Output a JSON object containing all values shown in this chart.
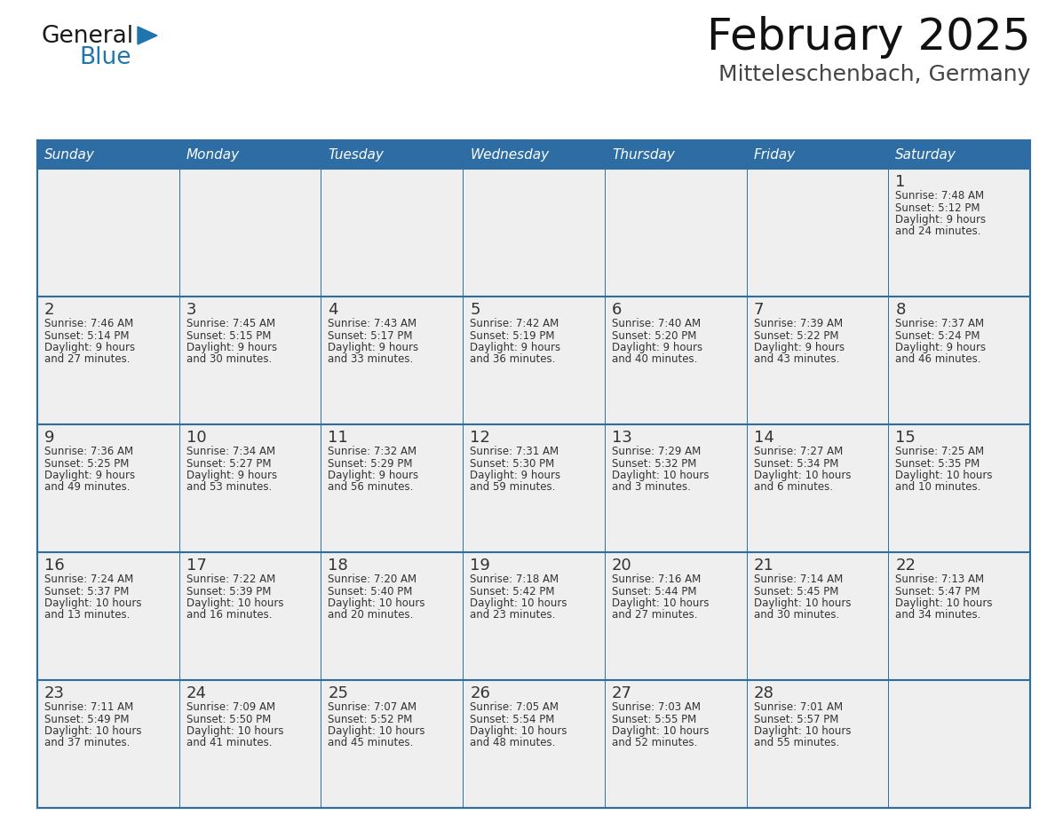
{
  "title": "February 2025",
  "subtitle": "Mitteleschenbach, Germany",
  "days_of_week": [
    "Sunday",
    "Monday",
    "Tuesday",
    "Wednesday",
    "Thursday",
    "Friday",
    "Saturday"
  ],
  "header_bg": "#2E6DA4",
  "header_text": "#FFFFFF",
  "cell_bg": "#EFEFEF",
  "border_color": "#2E6DA4",
  "row_line_color": "#2E6DA4",
  "day_number_color": "#333333",
  "text_color": "#333333",
  "calendar_data": [
    [
      null,
      null,
      null,
      null,
      null,
      null,
      {
        "day": 1,
        "sunrise": "7:48 AM",
        "sunset": "5:12 PM",
        "daylight": "9 hours",
        "daylight2": "and 24 minutes."
      }
    ],
    [
      {
        "day": 2,
        "sunrise": "7:46 AM",
        "sunset": "5:14 PM",
        "daylight": "9 hours",
        "daylight2": "and 27 minutes."
      },
      {
        "day": 3,
        "sunrise": "7:45 AM",
        "sunset": "5:15 PM",
        "daylight": "9 hours",
        "daylight2": "and 30 minutes."
      },
      {
        "day": 4,
        "sunrise": "7:43 AM",
        "sunset": "5:17 PM",
        "daylight": "9 hours",
        "daylight2": "and 33 minutes."
      },
      {
        "day": 5,
        "sunrise": "7:42 AM",
        "sunset": "5:19 PM",
        "daylight": "9 hours",
        "daylight2": "and 36 minutes."
      },
      {
        "day": 6,
        "sunrise": "7:40 AM",
        "sunset": "5:20 PM",
        "daylight": "9 hours",
        "daylight2": "and 40 minutes."
      },
      {
        "day": 7,
        "sunrise": "7:39 AM",
        "sunset": "5:22 PM",
        "daylight": "9 hours",
        "daylight2": "and 43 minutes."
      },
      {
        "day": 8,
        "sunrise": "7:37 AM",
        "sunset": "5:24 PM",
        "daylight": "9 hours",
        "daylight2": "and 46 minutes."
      }
    ],
    [
      {
        "day": 9,
        "sunrise": "7:36 AM",
        "sunset": "5:25 PM",
        "daylight": "9 hours",
        "daylight2": "and 49 minutes."
      },
      {
        "day": 10,
        "sunrise": "7:34 AM",
        "sunset": "5:27 PM",
        "daylight": "9 hours",
        "daylight2": "and 53 minutes."
      },
      {
        "day": 11,
        "sunrise": "7:32 AM",
        "sunset": "5:29 PM",
        "daylight": "9 hours",
        "daylight2": "and 56 minutes."
      },
      {
        "day": 12,
        "sunrise": "7:31 AM",
        "sunset": "5:30 PM",
        "daylight": "9 hours",
        "daylight2": "and 59 minutes."
      },
      {
        "day": 13,
        "sunrise": "7:29 AM",
        "sunset": "5:32 PM",
        "daylight": "10 hours",
        "daylight2": "and 3 minutes."
      },
      {
        "day": 14,
        "sunrise": "7:27 AM",
        "sunset": "5:34 PM",
        "daylight": "10 hours",
        "daylight2": "and 6 minutes."
      },
      {
        "day": 15,
        "sunrise": "7:25 AM",
        "sunset": "5:35 PM",
        "daylight": "10 hours",
        "daylight2": "and 10 minutes."
      }
    ],
    [
      {
        "day": 16,
        "sunrise": "7:24 AM",
        "sunset": "5:37 PM",
        "daylight": "10 hours",
        "daylight2": "and 13 minutes."
      },
      {
        "day": 17,
        "sunrise": "7:22 AM",
        "sunset": "5:39 PM",
        "daylight": "10 hours",
        "daylight2": "and 16 minutes."
      },
      {
        "day": 18,
        "sunrise": "7:20 AM",
        "sunset": "5:40 PM",
        "daylight": "10 hours",
        "daylight2": "and 20 minutes."
      },
      {
        "day": 19,
        "sunrise": "7:18 AM",
        "sunset": "5:42 PM",
        "daylight": "10 hours",
        "daylight2": "and 23 minutes."
      },
      {
        "day": 20,
        "sunrise": "7:16 AM",
        "sunset": "5:44 PM",
        "daylight": "10 hours",
        "daylight2": "and 27 minutes."
      },
      {
        "day": 21,
        "sunrise": "7:14 AM",
        "sunset": "5:45 PM",
        "daylight": "10 hours",
        "daylight2": "and 30 minutes."
      },
      {
        "day": 22,
        "sunrise": "7:13 AM",
        "sunset": "5:47 PM",
        "daylight": "10 hours",
        "daylight2": "and 34 minutes."
      }
    ],
    [
      {
        "day": 23,
        "sunrise": "7:11 AM",
        "sunset": "5:49 PM",
        "daylight": "10 hours",
        "daylight2": "and 37 minutes."
      },
      {
        "day": 24,
        "sunrise": "7:09 AM",
        "sunset": "5:50 PM",
        "daylight": "10 hours",
        "daylight2": "and 41 minutes."
      },
      {
        "day": 25,
        "sunrise": "7:07 AM",
        "sunset": "5:52 PM",
        "daylight": "10 hours",
        "daylight2": "and 45 minutes."
      },
      {
        "day": 26,
        "sunrise": "7:05 AM",
        "sunset": "5:54 PM",
        "daylight": "10 hours",
        "daylight2": "and 48 minutes."
      },
      {
        "day": 27,
        "sunrise": "7:03 AM",
        "sunset": "5:55 PM",
        "daylight": "10 hours",
        "daylight2": "and 52 minutes."
      },
      {
        "day": 28,
        "sunrise": "7:01 AM",
        "sunset": "5:57 PM",
        "daylight": "10 hours",
        "daylight2": "and 55 minutes."
      },
      null
    ]
  ],
  "logo_text_general": "General",
  "logo_text_blue": "Blue",
  "logo_color_general": "#1a1a1a",
  "logo_color_blue": "#2175AE",
  "logo_triangle_color": "#2175AE",
  "title_fontsize": 36,
  "subtitle_fontsize": 18,
  "dow_fontsize": 11,
  "day_num_fontsize": 13,
  "cell_text_fontsize": 8.5
}
